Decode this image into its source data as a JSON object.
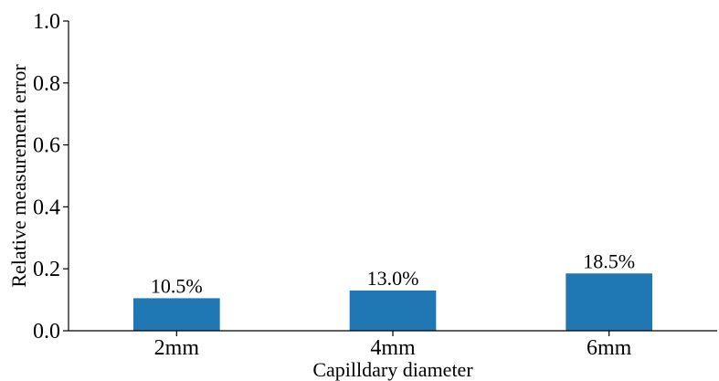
{
  "chart_data": {
    "type": "bar",
    "title": "",
    "xlabel": "Capilldary diameter",
    "ylabel": "Relative measurement error",
    "categories": [
      "2mm",
      "4mm",
      "6mm"
    ],
    "values": [
      0.105,
      0.13,
      0.185
    ],
    "data_labels": [
      "10.5%",
      "13.0%",
      "18.5%"
    ],
    "ylim": [
      0,
      1.0
    ],
    "yticks": [
      "0.0",
      "0.2",
      "0.4",
      "0.6",
      "0.8",
      "1.0"
    ],
    "grid": false,
    "legend": "none",
    "bar_color": "#1f77b4"
  }
}
